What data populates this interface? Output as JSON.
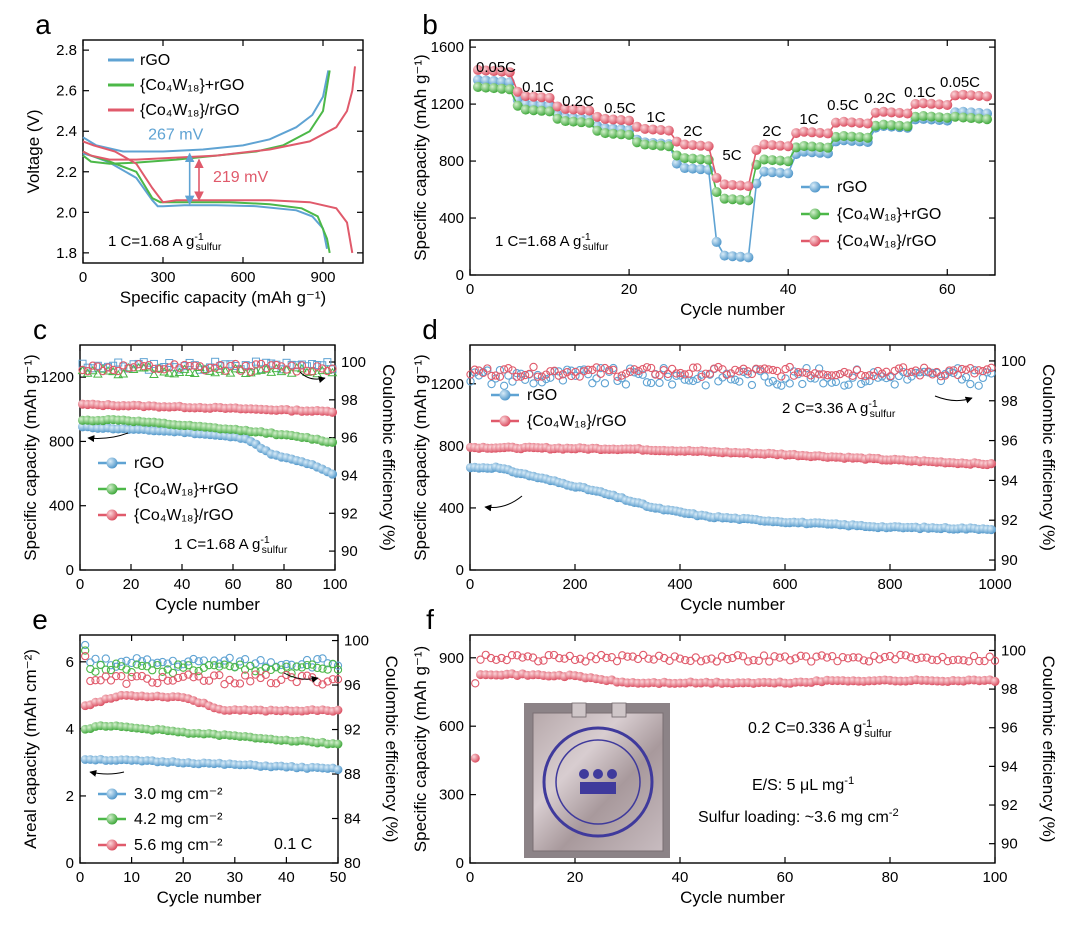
{
  "colors": {
    "blue": "#5fa3d3",
    "green": "#4cb848",
    "red": "#e05a6b",
    "arrow_blue": "#5fa3d3",
    "arrow_red": "#e05a6b"
  },
  "chart_data": [
    {
      "id": "a",
      "type": "line",
      "panel_label": "a",
      "xlabel": "Specific capacity (mAh g⁻¹)",
      "ylabel": "Voltage (V)",
      "xlim": [
        0,
        1050
      ],
      "ylim": [
        1.75,
        2.85
      ],
      "xticks": [
        0,
        300,
        600,
        900
      ],
      "yticks": [
        1.8,
        2.0,
        2.2,
        2.4,
        2.6,
        2.8
      ],
      "legend": [
        "rGO",
        "{Co₄W₁₈}+rGO",
        "{Co₄W₁₈}/rGO"
      ],
      "annotations": {
        "gap_blue": "267 mV",
        "gap_red": "219 mV",
        "rate_note": "1 C=1.68 A g⁻¹sulfur"
      },
      "series": [
        {
          "name": "rGO discharge",
          "color": "blue",
          "points": [
            [
              0,
              2.29
            ],
            [
              30,
              2.28
            ],
            [
              100,
              2.245
            ],
            [
              200,
              2.17
            ],
            [
              260,
              2.06
            ],
            [
              280,
              2.03
            ],
            [
              300,
              2.03
            ],
            [
              380,
              2.035
            ],
            [
              500,
              2.035
            ],
            [
              650,
              2.03
            ],
            [
              800,
              2.01
            ],
            [
              860,
              1.98
            ],
            [
              900,
              1.92
            ],
            [
              915,
              1.82
            ]
          ]
        },
        {
          "name": "rGO charge",
          "color": "blue",
          "points": [
            [
              0,
              2.37
            ],
            [
              50,
              2.33
            ],
            [
              150,
              2.3
            ],
            [
              300,
              2.3
            ],
            [
              450,
              2.31
            ],
            [
              600,
              2.33
            ],
            [
              700,
              2.36
            ],
            [
              800,
              2.42
            ],
            [
              860,
              2.48
            ],
            [
              900,
              2.57
            ],
            [
              920,
              2.7
            ]
          ]
        },
        {
          "name": "Co4W18+rGO discharge",
          "color": "green",
          "points": [
            [
              0,
              2.3
            ],
            [
              30,
              2.28
            ],
            [
              100,
              2.25
            ],
            [
              200,
              2.2
            ],
            [
              260,
              2.07
            ],
            [
              290,
              2.05
            ],
            [
              400,
              2.05
            ],
            [
              550,
              2.05
            ],
            [
              700,
              2.04
            ],
            [
              820,
              2.02
            ],
            [
              880,
              1.98
            ],
            [
              915,
              1.87
            ],
            [
              925,
              1.8
            ]
          ]
        },
        {
          "name": "Co4W18+rGO charge",
          "color": "green",
          "points": [
            [
              0,
              2.28
            ],
            [
              30,
              2.25
            ],
            [
              100,
              2.24
            ],
            [
              200,
              2.245
            ],
            [
              350,
              2.26
            ],
            [
              500,
              2.28
            ],
            [
              650,
              2.3
            ],
            [
              750,
              2.33
            ],
            [
              850,
              2.4
            ],
            [
              900,
              2.5
            ],
            [
              925,
              2.7
            ]
          ]
        },
        {
          "name": "Co4W18/rGO discharge",
          "color": "red",
          "points": [
            [
              0,
              2.35
            ],
            [
              40,
              2.33
            ],
            [
              120,
              2.3
            ],
            [
              200,
              2.24
            ],
            [
              260,
              2.12
            ],
            [
              300,
              2.05
            ],
            [
              350,
              2.06
            ],
            [
              500,
              2.06
            ],
            [
              700,
              2.06
            ],
            [
              850,
              2.05
            ],
            [
              950,
              2.02
            ],
            [
              990,
              1.95
            ],
            [
              1010,
              1.8
            ]
          ]
        },
        {
          "name": "Co4W18/rGO charge",
          "color": "red",
          "points": [
            [
              0,
              2.3
            ],
            [
              30,
              2.28
            ],
            [
              100,
              2.26
            ],
            [
              200,
              2.26
            ],
            [
              350,
              2.27
            ],
            [
              500,
              2.28
            ],
            [
              700,
              2.31
            ],
            [
              850,
              2.35
            ],
            [
              950,
              2.42
            ],
            [
              990,
              2.5
            ],
            [
              1010,
              2.6
            ],
            [
              1020,
              2.72
            ]
          ]
        }
      ]
    },
    {
      "id": "b",
      "type": "scatter",
      "panel_label": "b",
      "xlabel": "Cycle number",
      "ylabel": "Specific capacity (mAh g⁻¹)",
      "xlim": [
        0,
        66
      ],
      "ylim": [
        0,
        1650
      ],
      "xticks": [
        0,
        20,
        40,
        60
      ],
      "yticks": [
        0,
        400,
        800,
        1200,
        1600
      ],
      "legend": [
        "rGO",
        "{Co₄W₁₈}+rGO",
        "{Co₄W₁₈}/rGO"
      ],
      "rate_labels": [
        "0.05C",
        "0.1C",
        "0.2C",
        "0.5C",
        "1C",
        "2C",
        "5C",
        "2C",
        "1C",
        "0.5C",
        "0.2C",
        "0.1C",
        "0.05C"
      ],
      "rate_note": "1 C=1.68 A g⁻¹sulfur",
      "segment_values": {
        "rGO": [
          1370,
          1205,
          1110,
          1035,
          935,
          755,
          140,
          730,
          870,
          950,
          1050,
          1100,
          1150
        ],
        "Co4W18+rGO": [
          1320,
          1165,
          1085,
          1000,
          920,
          825,
          540,
          815,
          910,
          980,
          1060,
          1120,
          1110
        ],
        "Co4W18/rGO": [
          1440,
          1260,
          1170,
          1100,
          1030,
          920,
          640,
          920,
          1010,
          1080,
          1150,
          1210,
          1270
        ]
      }
    },
    {
      "id": "c",
      "type": "scatter",
      "panel_label": "c",
      "xlabel": "Cycle number",
      "ylabel": "Specific capacity (mAh g⁻¹)",
      "ylabel_right": "Coulombic efficiency (%)",
      "xlim": [
        0,
        100
      ],
      "ylim": [
        0,
        1400
      ],
      "ylim_right": [
        89,
        100.9
      ],
      "xticks": [
        0,
        20,
        40,
        60,
        80,
        100
      ],
      "yticks": [
        0,
        400,
        800,
        1200
      ],
      "yticks_right": [
        90,
        92,
        94,
        96,
        98,
        100
      ],
      "legend": [
        "rGO",
        "{Co₄W₁₈}+rGO",
        "{Co₄W₁₈}/rGO"
      ],
      "rate_note": "1 C=1.68 A g⁻¹sulfur",
      "capacity_keypoints": {
        "rGO": [
          [
            1,
            890
          ],
          [
            40,
            860
          ],
          [
            65,
            820
          ],
          [
            75,
            720
          ],
          [
            90,
            660
          ],
          [
            100,
            590
          ]
        ],
        "Co4W18+rGO": [
          [
            1,
            930
          ],
          [
            15,
            935
          ],
          [
            40,
            900
          ],
          [
            70,
            860
          ],
          [
            90,
            820
          ],
          [
            100,
            790
          ]
        ],
        "Co4W18/rGO": [
          [
            1,
            1030
          ],
          [
            50,
            1010
          ],
          [
            100,
            985
          ]
        ]
      },
      "ce_levels": {
        "rGO": 99.8,
        "Co4W18+rGO": 99.55,
        "Co4W18/rGO": 99.7
      }
    },
    {
      "id": "d",
      "type": "scatter",
      "panel_label": "d",
      "xlabel": "Cycle number",
      "ylabel": "Specific capacity (mAh g⁻¹)",
      "ylabel_right": "Coulombic efficiency (%)",
      "xlim": [
        0,
        1000
      ],
      "ylim": [
        0,
        1450
      ],
      "ylim_right": [
        89.5,
        100.8
      ],
      "xticks": [
        0,
        200,
        400,
        600,
        800,
        1000
      ],
      "yticks": [
        0,
        400,
        800,
        1200
      ],
      "yticks_right": [
        90,
        92,
        94,
        96,
        98,
        100
      ],
      "legend": [
        "rGO",
        "{Co₄W₁₈}/rGO"
      ],
      "rate_note": "2 C=3.36 A g⁻¹sulfur",
      "capacity_keypoints": {
        "rGO": [
          [
            1,
            660
          ],
          [
            50,
            660
          ],
          [
            150,
            580
          ],
          [
            250,
            500
          ],
          [
            350,
            400
          ],
          [
            450,
            345
          ],
          [
            600,
            310
          ],
          [
            800,
            275
          ],
          [
            1000,
            265
          ]
        ],
        "Co4W18/rGO": [
          [
            1,
            790
          ],
          [
            300,
            780
          ],
          [
            600,
            745
          ],
          [
            800,
            710
          ],
          [
            1000,
            680
          ]
        ]
      },
      "ce_levels": {
        "rGO": 99.2,
        "Co4W18/rGO": 99.45
      }
    },
    {
      "id": "e",
      "type": "scatter",
      "panel_label": "e",
      "xlabel": "Cycle number",
      "ylabel": "Areal capacity (mAh cm⁻²)",
      "ylabel_right": "Coulombic efficiency (%)",
      "xlim": [
        0,
        50
      ],
      "ylim": [
        0,
        6.8
      ],
      "ylim_right": [
        80,
        100.5
      ],
      "xticks": [
        0,
        10,
        20,
        30,
        40,
        50
      ],
      "yticks": [
        0,
        2,
        4,
        6
      ],
      "yticks_right": [
        80,
        84,
        88,
        92,
        96,
        100
      ],
      "legend": [
        "3.0 mg cm⁻²",
        "4.2 mg cm⁻²",
        "5.6 mg cm⁻²"
      ],
      "rate_note": "0.1 C",
      "capacity_keypoints": {
        "3.0 mg cm-2": [
          [
            1,
            3.1
          ],
          [
            20,
            3.0
          ],
          [
            50,
            2.8
          ]
        ],
        "4.2 mg cm-2": [
          [
            1,
            4.0
          ],
          [
            5,
            4.1
          ],
          [
            20,
            3.9
          ],
          [
            50,
            3.55
          ]
        ],
        "5.6 mg cm-2": [
          [
            1,
            4.7
          ],
          [
            8,
            5.0
          ],
          [
            20,
            4.95
          ],
          [
            28,
            4.55
          ],
          [
            50,
            4.55
          ]
        ]
      },
      "ce_levels": {
        "3.0 mg cm-2": 98.0,
        "4.2 mg cm-2": 97.5,
        "5.6 mg cm-2": 96.5
      }
    },
    {
      "id": "f",
      "type": "scatter",
      "panel_label": "f",
      "xlabel": "Cycle number",
      "ylabel": "Specific capacity (mAh g⁻¹)",
      "ylabel_right": "Coulombic efficiency (%)",
      "xlim": [
        0,
        100
      ],
      "ylim": [
        0,
        1000
      ],
      "ylim_right": [
        89,
        100.8
      ],
      "xticks": [
        0,
        20,
        40,
        60,
        80,
        100
      ],
      "yticks": [
        0,
        300,
        600,
        900
      ],
      "yticks_right": [
        90,
        92,
        94,
        96,
        98,
        100
      ],
      "notes": [
        "0.2 C=0.336 A g⁻¹sulfur",
        "E/S: 5 μL mg⁻¹",
        "Sulfur loading: ~3.6 mg cm⁻²"
      ],
      "capacity_keypoints": [
        [
          1,
          460
        ],
        [
          2,
          830
        ],
        [
          20,
          820
        ],
        [
          30,
          790
        ],
        [
          60,
          790
        ],
        [
          70,
          800
        ],
        [
          100,
          800
        ]
      ],
      "ce_level": 99.6
    }
  ]
}
